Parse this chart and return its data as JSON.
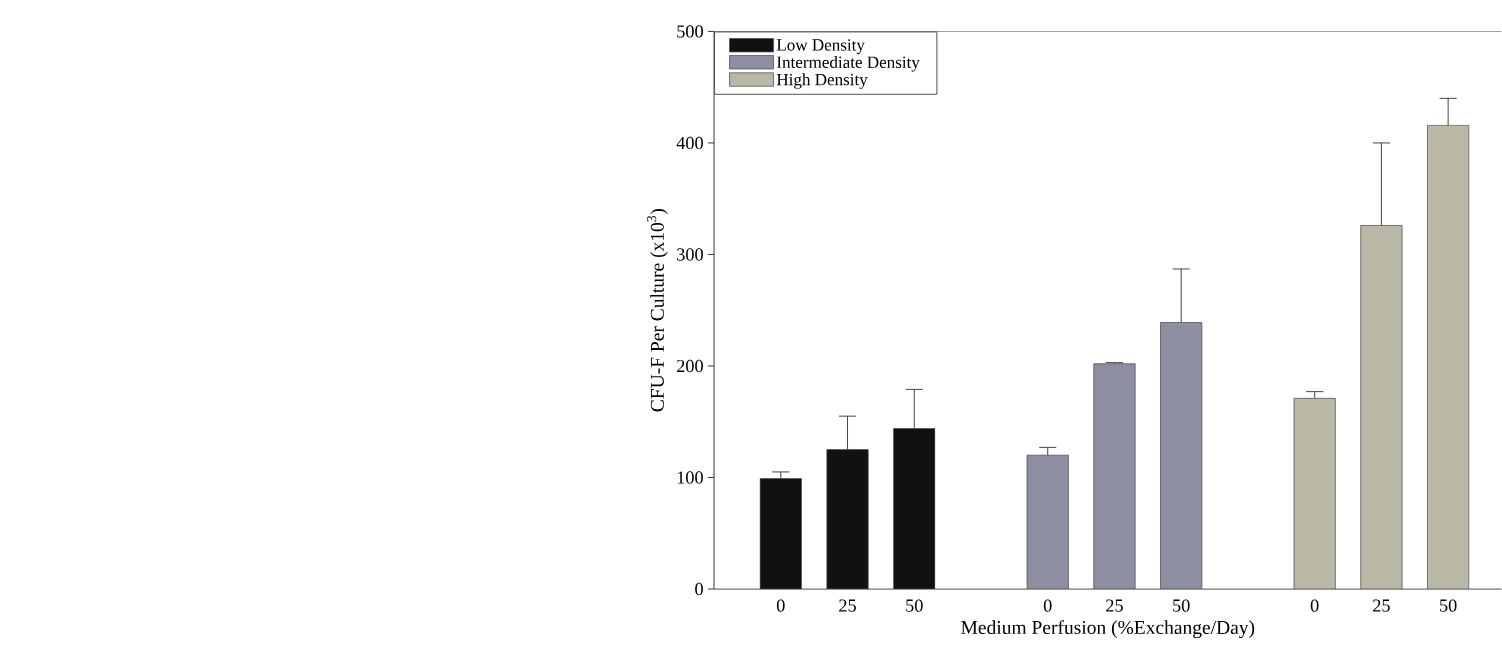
{
  "chart_data": {
    "type": "bar",
    "xlabel": "Medium Perfusion (%Exchange/Day)",
    "ylabel": "CFU-F Per Culture (x10$^{3}$)",
    "categories": [
      "0",
      "25",
      "50",
      null,
      "0",
      "25",
      "50",
      null,
      "0",
      "25",
      "50"
    ],
    "series": [
      {
        "name": "Low Density",
        "color": "#111111",
        "values": [
          99,
          125,
          144,
          null,
          null,
          null,
          null,
          null,
          null,
          null,
          null
        ],
        "errors": [
          [
            99,
            105
          ],
          [
            125,
            155
          ],
          [
            144,
            179
          ],
          null,
          null,
          null,
          null,
          null,
          null,
          null,
          null
        ]
      },
      {
        "name": "Intermediate Density",
        "color": "#8e8ea3",
        "values": [
          null,
          null,
          null,
          null,
          120,
          202,
          239,
          null,
          null,
          null,
          null
        ],
        "errors": [
          null,
          null,
          null,
          null,
          [
            120,
            127
          ],
          [
            202,
            203
          ],
          [
            239,
            287
          ],
          null,
          null,
          null,
          null
        ]
      },
      {
        "name": "High Density",
        "color": "#b9b8a6",
        "values": [
          null,
          null,
          null,
          null,
          null,
          null,
          null,
          null,
          171,
          326,
          416
        ],
        "errors": [
          null,
          null,
          null,
          null,
          null,
          null,
          null,
          null,
          [
            171,
            177
          ],
          [
            326,
            400
          ],
          [
            416,
            440
          ]
        ]
      }
    ],
    "ylim": [
      0,
      500
    ],
    "yticks": [
      0,
      100,
      200,
      300,
      400,
      500
    ],
    "grid": false,
    "legend": "top left"
  }
}
